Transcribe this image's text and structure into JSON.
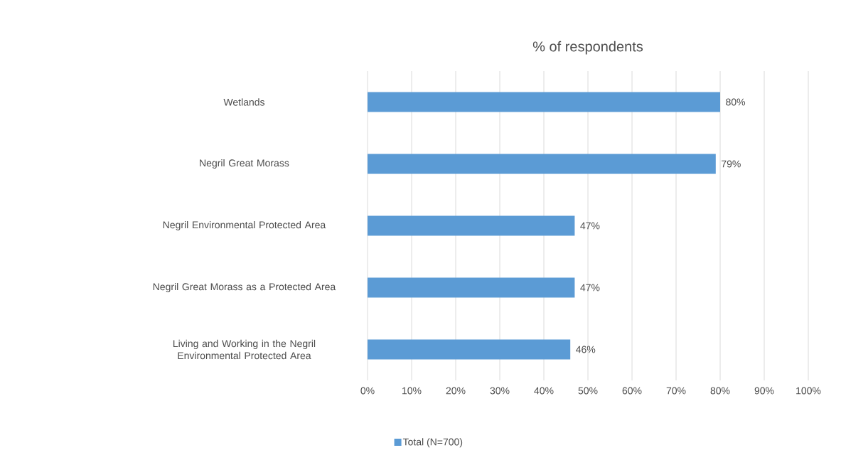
{
  "chart_data": {
    "type": "bar",
    "orientation": "horizontal",
    "title": "% of respondents",
    "categories": [
      "Wetlands",
      "Negril Great Morass",
      "Negril Environmental Protected Area",
      "Negril Great Morass as a Protected Area",
      "Living and Working in the Negril Environmental Protected Area"
    ],
    "series": [
      {
        "name": "Total (N=700)",
        "color": "#5b9bd5",
        "values": [
          80,
          79,
          47,
          47,
          46
        ],
        "value_labels": [
          "80%",
          "79%",
          "47%",
          "47%",
          "46%"
        ]
      }
    ],
    "xlim": [
      0,
      100
    ],
    "xticks": [
      {
        "value": 0,
        "label": "0%"
      },
      {
        "value": 10,
        "label": "10%"
      },
      {
        "value": 20,
        "label": "20%"
      },
      {
        "value": 30,
        "label": "30%"
      },
      {
        "value": 40,
        "label": "40%"
      },
      {
        "value": 50,
        "label": "50%"
      },
      {
        "value": 60,
        "label": "60%"
      },
      {
        "value": 70,
        "label": "70%"
      },
      {
        "value": 80,
        "label": "80%"
      },
      {
        "value": 90,
        "label": "90%"
      },
      {
        "value": 100,
        "label": "100%"
      }
    ],
    "grid": "x",
    "legend": "bottom"
  }
}
